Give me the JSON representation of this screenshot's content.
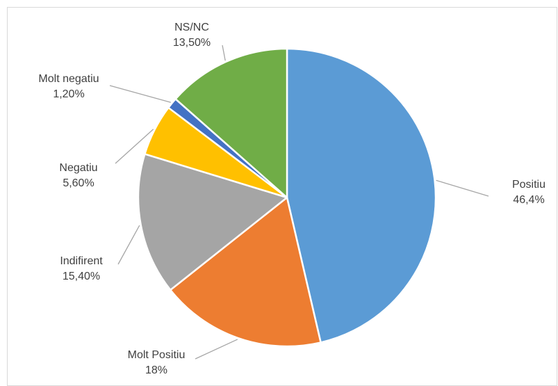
{
  "chart_data": {
    "type": "pie",
    "title": "",
    "legend": "none",
    "slices": [
      {
        "name": "Positiu",
        "value": 46.4,
        "label": "46,4%",
        "color": "#5b9bd5"
      },
      {
        "name": "Molt Positiu",
        "value": 18.0,
        "label": "18%",
        "color": "#ed7d31"
      },
      {
        "name": "Indifirent",
        "value": 15.4,
        "label": "15,40%",
        "color": "#a5a5a5"
      },
      {
        "name": "Negatiu",
        "value": 5.6,
        "label": "5,60%",
        "color": "#ffc000"
      },
      {
        "name": "Molt negatiu",
        "value": 1.2,
        "label": "1,20%",
        "color": "#4472c4"
      },
      {
        "name": "NS/NC",
        "value": 13.5,
        "label": "13,50%",
        "color": "#70ad47"
      }
    ]
  }
}
